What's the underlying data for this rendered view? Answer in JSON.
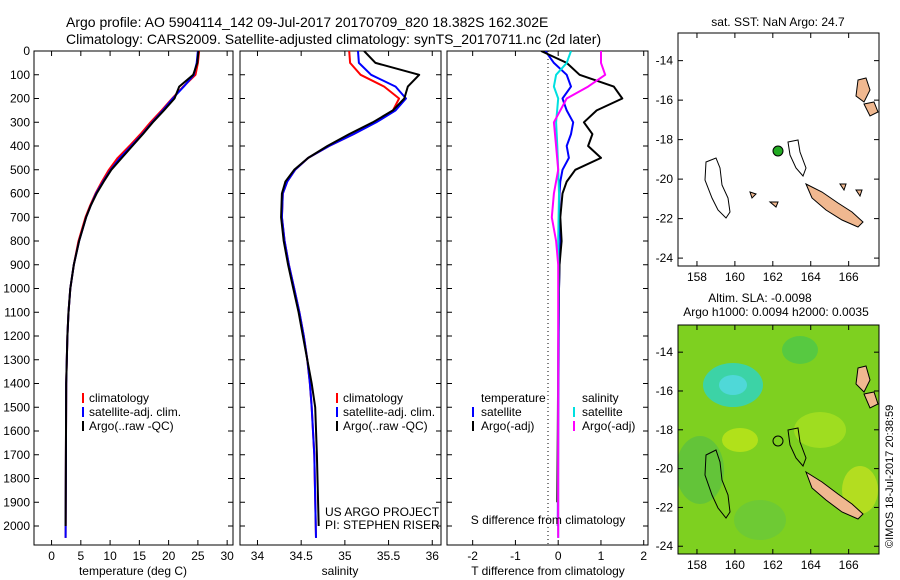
{
  "header": {
    "line1": "Argo profile: AO 5904114_142 09-Jul-2017 20170709_820 18.382S 162.302E",
    "line2": "Climatology: CARS2009. Satellite-adjusted climatology: synTS_20170711.nc (2d later)"
  },
  "colors": {
    "climatology": "#ff0000",
    "satellite": "#0000ff",
    "argo": "#000000",
    "sat_salinity": "#00e0e0",
    "argo_salinity_adj": "#ff00ff",
    "land": "#f0b890",
    "float_marker": "#22aa22"
  },
  "pi_note": {
    "line1": "US ARGO PROJECT",
    "line2": "PI: STEPHEN RISER"
  },
  "diff_note": "S difference from climatology",
  "credit": "©IMOS 18-Jul-2017 20:38:59",
  "map_top": {
    "title": "sat. SST: NaN Argo: 24.7",
    "xticks": [
      "158",
      "160",
      "162",
      "164",
      "166"
    ],
    "yticks": [
      "-14",
      "-16",
      "-18",
      "-20",
      "-22",
      "-24"
    ]
  },
  "map_bottom": {
    "title1": "Altim. SLA: -0.0098",
    "title2": "Argo h1000: 0.0094 h2000: 0.0035",
    "xticks": [
      "158",
      "160",
      "162",
      "164",
      "166"
    ],
    "yticks": [
      "-14",
      "-16",
      "-18",
      "-20",
      "-22",
      "-24"
    ]
  },
  "chart_data": [
    {
      "type": "line",
      "xlabel": "temperature (deg C)",
      "ylabel": "",
      "xlim": [
        -3,
        31
      ],
      "ylim": [
        2080,
        0
      ],
      "xticks": [
        "0",
        "5",
        "10",
        "15",
        "20",
        "25",
        "30"
      ],
      "yticks": [
        "0",
        "100",
        "200",
        "300",
        "400",
        "500",
        "600",
        "700",
        "800",
        "900",
        "1000",
        "1100",
        "1200",
        "1300",
        "1400",
        "1500",
        "1600",
        "1700",
        "1800",
        "1900",
        "2000"
      ],
      "legend": {
        "placement": "bottom-left",
        "entries": [
          "climatology",
          "satellite-adj. clim.",
          "Argo(..raw -QC)"
        ]
      },
      "series": [
        {
          "name": "climatology",
          "color": "#ff0000",
          "x": [
            25.2,
            25.0,
            24.6,
            22.5,
            20.6,
            18.8,
            16.9,
            15.2,
            13.3,
            11.3,
            9.8,
            8.6,
            7.5,
            6.6,
            5.8,
            4.6,
            3.8,
            3.2,
            2.9,
            2.7,
            2.6,
            2.5,
            2.4
          ],
          "y": [
            0,
            50,
            100,
            150,
            200,
            250,
            300,
            350,
            400,
            450,
            500,
            550,
            600,
            650,
            700,
            800,
            900,
            1000,
            1100,
            1200,
            1300,
            1400,
            2050
          ]
        },
        {
          "name": "satellite-adj. clim.",
          "color": "#0000ff",
          "x": [
            25.0,
            24.8,
            24.3,
            22.6,
            20.7,
            19.0,
            17.2,
            15.5,
            13.6,
            11.7,
            10.1,
            8.8,
            7.6,
            6.7,
            5.9,
            4.7,
            3.8,
            3.2,
            2.9,
            2.7,
            2.6,
            2.5,
            2.4
          ],
          "y": [
            0,
            50,
            100,
            150,
            200,
            250,
            300,
            350,
            400,
            450,
            500,
            550,
            600,
            650,
            700,
            800,
            900,
            1000,
            1100,
            1200,
            1300,
            1400,
            2050
          ]
        },
        {
          "name": "Argo(..raw -QC)",
          "color": "#000000",
          "x": [
            25.1,
            24.9,
            24.2,
            21.8,
            21.0,
            19.2,
            17.3,
            15.6,
            13.8,
            12.0,
            10.2,
            8.9,
            7.7,
            6.7,
            5.9,
            4.7,
            3.8,
            3.2,
            2.9,
            2.7,
            2.6,
            2.5,
            2.4
          ],
          "y": [
            0,
            50,
            100,
            150,
            200,
            250,
            300,
            350,
            400,
            450,
            500,
            550,
            600,
            650,
            700,
            800,
            900,
            1000,
            1100,
            1200,
            1300,
            1400,
            2000
          ]
        }
      ]
    },
    {
      "type": "line",
      "xlabel": "salinity",
      "ylabel": "",
      "xlim": [
        33.8,
        36.1
      ],
      "ylim": [
        2080,
        0
      ],
      "xticks": [
        "34",
        "34.5",
        "35",
        "35.5",
        "36"
      ],
      "legend": {
        "placement": "bottom-left",
        "entries": [
          "climatology",
          "satellite-adj. clim.",
          "Argo(..raw -QC)"
        ]
      },
      "series": [
        {
          "name": "climatology",
          "color": "#ff0000",
          "x": [
            35.05,
            35.06,
            35.18,
            35.45,
            35.62,
            35.55,
            35.35,
            35.1,
            34.82,
            34.58,
            34.43,
            34.34,
            34.29,
            34.28,
            34.31,
            34.36,
            34.42,
            34.48,
            34.53,
            34.57,
            34.6,
            34.62,
            34.65,
            34.67
          ],
          "y": [
            0,
            50,
            100,
            150,
            200,
            250,
            300,
            350,
            400,
            450,
            500,
            550,
            600,
            700,
            800,
            900,
            1000,
            1100,
            1200,
            1300,
            1400,
            1500,
            1700,
            2050
          ]
        },
        {
          "name": "satellite-adj. clim.",
          "color": "#0000ff",
          "x": [
            35.15,
            35.16,
            35.3,
            35.58,
            35.7,
            35.58,
            35.36,
            35.1,
            34.82,
            34.58,
            34.43,
            34.34,
            34.29,
            34.28,
            34.31,
            34.36,
            34.42,
            34.48,
            34.53,
            34.57,
            34.6,
            34.62,
            34.65,
            34.67
          ],
          "y": [
            0,
            50,
            100,
            150,
            200,
            250,
            300,
            350,
            400,
            450,
            500,
            550,
            600,
            700,
            800,
            900,
            1000,
            1100,
            1200,
            1300,
            1400,
            1500,
            1700,
            2050
          ]
        },
        {
          "name": "Argo(..raw -QC)",
          "color": "#000000",
          "x": [
            35.22,
            35.35,
            35.85,
            35.72,
            35.68,
            35.55,
            35.32,
            35.05,
            34.8,
            34.58,
            34.42,
            34.32,
            34.28,
            34.27,
            34.3,
            34.35,
            34.41,
            34.47,
            34.52,
            34.57,
            34.62,
            34.66,
            34.68,
            34.7
          ],
          "y": [
            0,
            50,
            100,
            150,
            200,
            250,
            300,
            350,
            400,
            450,
            500,
            550,
            600,
            700,
            800,
            900,
            1000,
            1100,
            1200,
            1300,
            1400,
            1500,
            1700,
            2000
          ]
        }
      ]
    },
    {
      "type": "line",
      "xlabel": "T difference from climatology",
      "ylabel": "",
      "xlim": [
        -2.6,
        2.1
      ],
      "ylim": [
        2080,
        0
      ],
      "xticks": [
        "-2",
        "-1",
        "0",
        "1",
        "2"
      ],
      "top_xticks": [
        "-0.5",
        "-0.25",
        "0",
        "0.25",
        "0.5"
      ],
      "legend": {
        "placement": "bottom",
        "entries": [
          "temperature",
          "satellite",
          "Argo(-adj)",
          "salinity",
          "satellite",
          "Argo(-adj)"
        ]
      },
      "series": [
        {
          "name": "satellite",
          "color": "#0000ff",
          "x": [
            -0.3,
            -0.1,
            0.2,
            0.3,
            0.1,
            0.2,
            0.35,
            0.3,
            0.2,
            0.25,
            0.1,
            0.05,
            0.03,
            0.02,
            0.05,
            0.03,
            0.02,
            0.01,
            0.0,
            -0.01
          ],
          "y": [
            0,
            50,
            100,
            150,
            200,
            250,
            300,
            350,
            400,
            450,
            500,
            550,
            600,
            700,
            800,
            900,
            1000,
            1300,
            1600,
            2000
          ]
        },
        {
          "name": "Argo(-adj)",
          "color": "#000000",
          "x": [
            -0.4,
            0.2,
            0.5,
            1.3,
            1.5,
            0.9,
            0.6,
            0.8,
            0.7,
            1.0,
            0.4,
            0.2,
            0.1,
            0.05,
            0.08,
            0.03,
            0.02,
            0.0,
            -0.01,
            -0.02
          ],
          "y": [
            0,
            50,
            100,
            150,
            200,
            250,
            300,
            350,
            400,
            450,
            500,
            550,
            600,
            700,
            800,
            900,
            1000,
            1300,
            1600,
            1900
          ]
        },
        {
          "name": "satellite",
          "color": "#00e0e0",
          "x": [
            0.3,
            0.2,
            -0.05,
            -0.1,
            0.0,
            -0.05,
            -0.02,
            0.0,
            0.02,
            0.0,
            0.01,
            0.0,
            0.0,
            0.0
          ],
          "y": [
            0,
            50,
            100,
            150,
            200,
            300,
            400,
            500,
            600,
            800,
            1000,
            1300,
            1600,
            2050
          ]
        },
        {
          "name": "Argo(-adj)",
          "color": "#ff00ff",
          "x": [
            1.0,
            1.0,
            1.1,
            0.7,
            0.2,
            -0.1,
            -0.05,
            0.0,
            -0.1,
            -0.15,
            -0.05,
            0.0,
            0.0,
            0.0
          ],
          "y": [
            0,
            50,
            100,
            150,
            200,
            300,
            400,
            500,
            600,
            700,
            800,
            900,
            1000,
            2050
          ]
        }
      ]
    }
  ]
}
